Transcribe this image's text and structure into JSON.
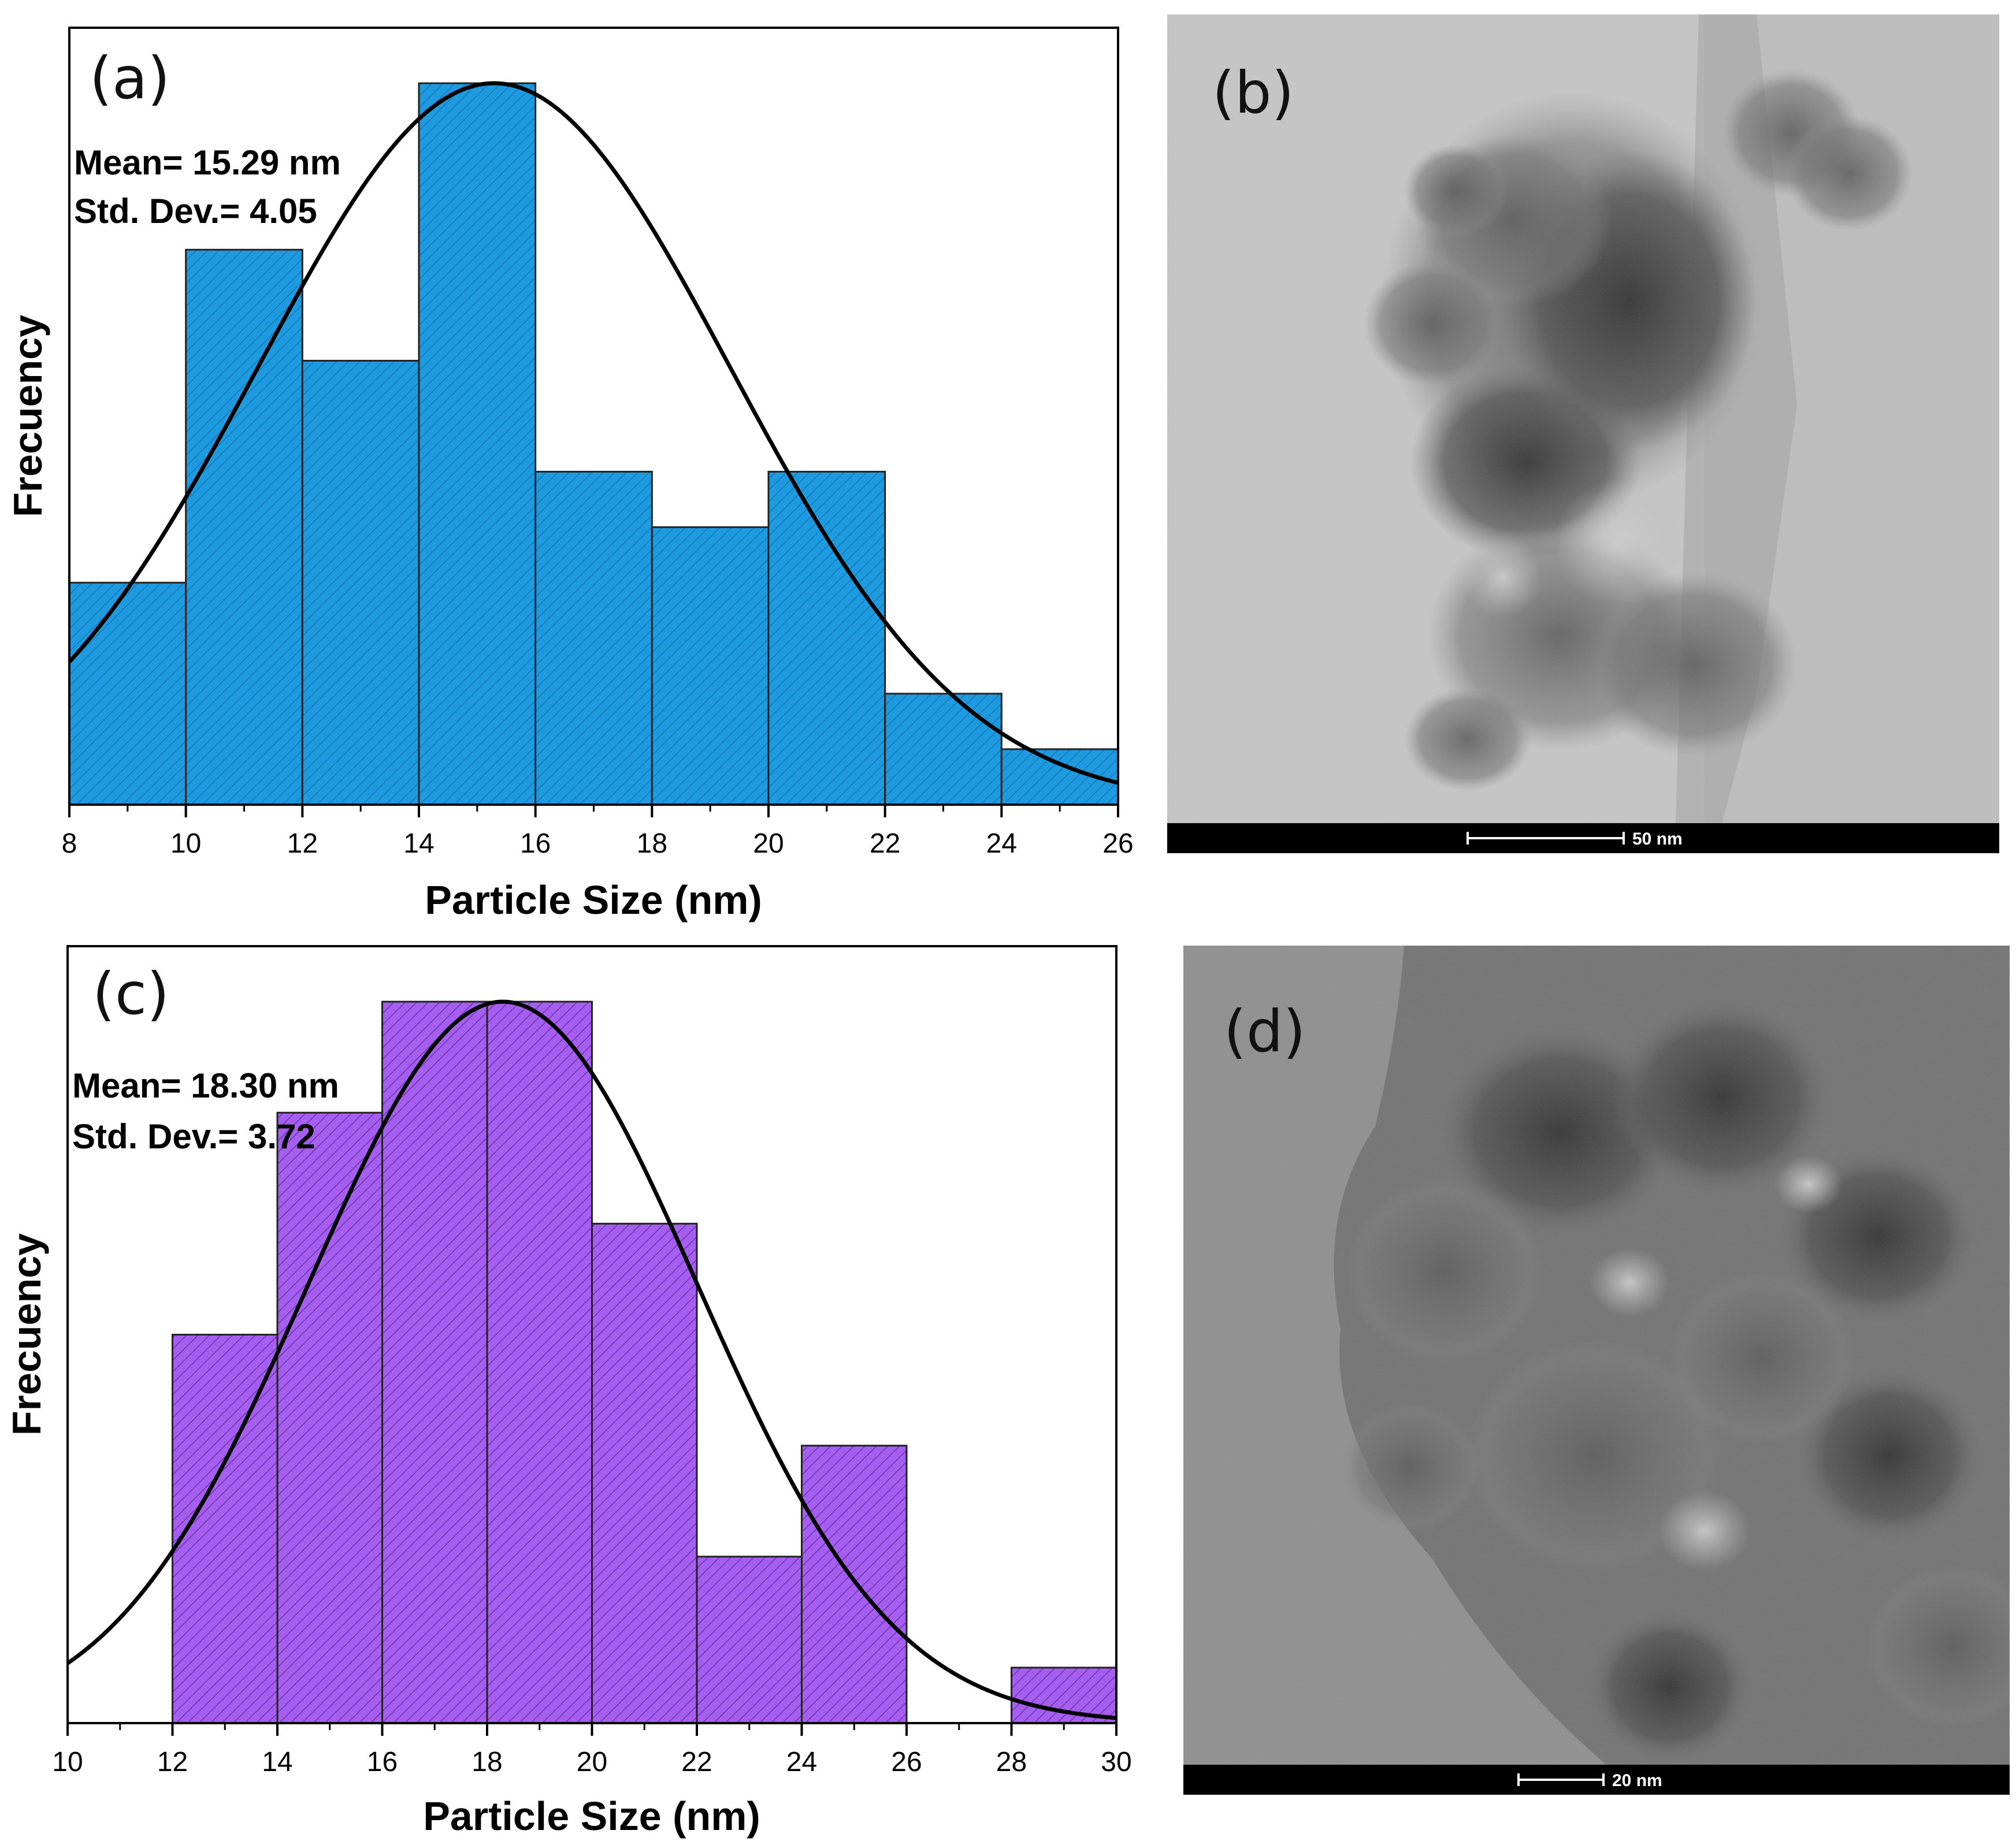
{
  "panels": {
    "a": {
      "letter": "(a)",
      "mean_text": "Mean= 15.29 nm",
      "std_text": "Std. Dev.= 4.05"
    },
    "b": {
      "letter": "(b)",
      "scale_bar": "50 nm"
    },
    "c": {
      "letter": "(c)",
      "mean_text": "Mean= 18.30 nm",
      "std_text": "Std. Dev.= 3.72"
    },
    "d": {
      "letter": "(d)",
      "scale_bar": "20 nm"
    }
  },
  "chart_data": [
    {
      "id": "a",
      "type": "bar",
      "xlabel": "Particle Size (nm)",
      "ylabel": "Frecuency",
      "xlim": [
        8,
        26
      ],
      "ylim": [
        0,
        14
      ],
      "xticks": [
        8,
        10,
        12,
        14,
        16,
        18,
        20,
        22,
        24,
        26
      ],
      "bins": [
        {
          "x0": 8,
          "x1": 10,
          "value": 4
        },
        {
          "x0": 10,
          "x1": 12,
          "value": 10
        },
        {
          "x0": 12,
          "x1": 14,
          "value": 8
        },
        {
          "x0": 14,
          "x1": 16,
          "value": 13
        },
        {
          "x0": 16,
          "x1": 18,
          "value": 6
        },
        {
          "x0": 18,
          "x1": 20,
          "value": 5
        },
        {
          "x0": 20,
          "x1": 22,
          "value": 6
        },
        {
          "x0": 22,
          "x1": 24,
          "value": 2
        },
        {
          "x0": 24,
          "x1": 26,
          "value": 1
        }
      ],
      "fit": {
        "type": "normal",
        "mean": 15.29,
        "std": 4.05,
        "peak": 13
      },
      "bar_color": "#1e9be0",
      "hatch_color": "#0d5f8f",
      "grid": false
    },
    {
      "id": "c",
      "type": "bar",
      "xlabel": "Particle Size (nm)",
      "ylabel": "Frecuency",
      "xlim": [
        10,
        30
      ],
      "ylim": [
        0,
        14
      ],
      "xticks": [
        10,
        12,
        14,
        16,
        18,
        20,
        22,
        24,
        26,
        28,
        30
      ],
      "bins": [
        {
          "x0": 12,
          "x1": 14,
          "value": 7
        },
        {
          "x0": 14,
          "x1": 16,
          "value": 11
        },
        {
          "x0": 16,
          "x1": 18,
          "value": 13
        },
        {
          "x0": 18,
          "x1": 20,
          "value": 13
        },
        {
          "x0": 20,
          "x1": 22,
          "value": 9
        },
        {
          "x0": 22,
          "x1": 24,
          "value": 3
        },
        {
          "x0": 24,
          "x1": 26,
          "value": 5
        },
        {
          "x0": 28,
          "x1": 30,
          "value": 1
        }
      ],
      "fit": {
        "type": "normal",
        "mean": 18.3,
        "std": 3.72,
        "peak": 13
      },
      "bar_color": "#a65ef0",
      "hatch_color": "#4a1f80",
      "grid": false
    }
  ],
  "colors": {
    "background": "#ffffff",
    "axis": "#000000",
    "fit_line": "#000000",
    "micrograph_b_bg": "#c4c4c4",
    "micrograph_d_bg": "#8a8a8a",
    "scale_bar_bg": "#000000"
  }
}
